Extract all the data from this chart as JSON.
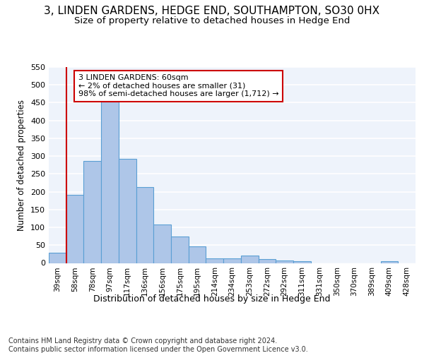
{
  "title": "3, LINDEN GARDENS, HEDGE END, SOUTHAMPTON, SO30 0HX",
  "subtitle": "Size of property relative to detached houses in Hedge End",
  "xlabel": "Distribution of detached houses by size in Hedge End",
  "ylabel": "Number of detached properties",
  "bar_color": "#aec6e8",
  "bar_edge_color": "#5a9fd4",
  "background_color": "#eef3fb",
  "grid_color": "#ffffff",
  "categories": [
    "39sqm",
    "58sqm",
    "78sqm",
    "97sqm",
    "117sqm",
    "136sqm",
    "156sqm",
    "175sqm",
    "195sqm",
    "214sqm",
    "234sqm",
    "253sqm",
    "272sqm",
    "292sqm",
    "311sqm",
    "331sqm",
    "350sqm",
    "370sqm",
    "389sqm",
    "409sqm",
    "428sqm"
  ],
  "values": [
    28,
    192,
    287,
    460,
    292,
    213,
    109,
    74,
    46,
    13,
    12,
    21,
    10,
    6,
    5,
    0,
    0,
    0,
    0,
    5,
    0
  ],
  "vline_x": 0.5,
  "annotation_text": "3 LINDEN GARDENS: 60sqm\n← 2% of detached houses are smaller (31)\n98% of semi-detached houses are larger (1,712) →",
  "annotation_box_color": "#ffffff",
  "annotation_box_edge": "#cc0000",
  "vline_color": "#cc0000",
  "ylim": [
    0,
    550
  ],
  "yticks": [
    0,
    50,
    100,
    150,
    200,
    250,
    300,
    350,
    400,
    450,
    500,
    550
  ],
  "footer_text": "Contains HM Land Registry data © Crown copyright and database right 2024.\nContains public sector information licensed under the Open Government Licence v3.0.",
  "title_fontsize": 11,
  "subtitle_fontsize": 9.5,
  "xlabel_fontsize": 9,
  "ylabel_fontsize": 8.5,
  "footer_fontsize": 7,
  "annot_fontsize": 8
}
